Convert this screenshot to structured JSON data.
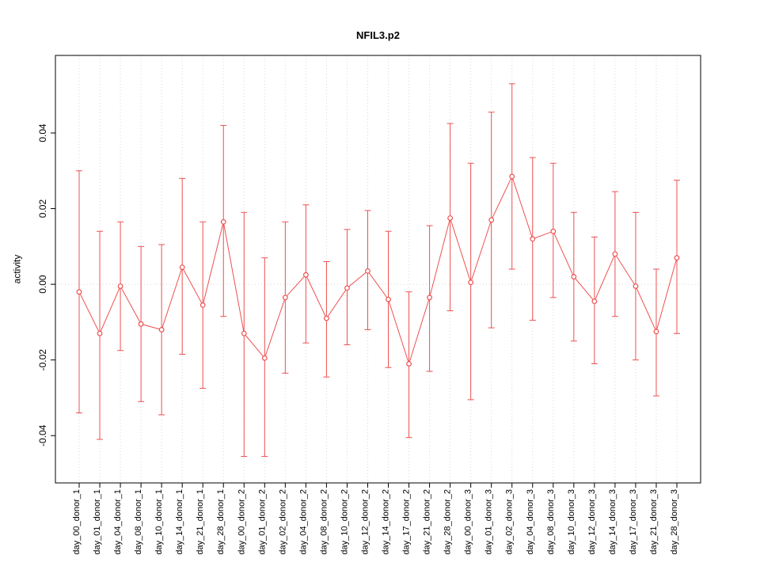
{
  "chart_data": {
    "type": "line",
    "title": "NFIL3.p2",
    "ylabel": "activity",
    "xlabel": "",
    "legend_position": "none",
    "grid": "vertical dotted line at each category; dotted horizontal line at y=0",
    "marker": "open-circle",
    "error_bars": "vertical with caps",
    "categories": [
      "day_00_donor_1",
      "day_01_donor_1",
      "day_04_donor_1",
      "day_08_donor_1",
      "day_10_donor_1",
      "day_14_donor_1",
      "day_21_donor_1",
      "day_28_donor_1",
      "day_00_donor_2",
      "day_01_donor_2",
      "day_02_donor_2",
      "day_04_donor_2",
      "day_08_donor_2",
      "day_10_donor_2",
      "day_12_donor_2",
      "day_14_donor_2",
      "day_17_donor_2",
      "day_21_donor_2",
      "day_28_donor_2",
      "day_00_donor_3",
      "day_01_donor_3",
      "day_02_donor_3",
      "day_04_donor_3",
      "day_08_donor_3",
      "day_10_donor_3",
      "day_12_donor_3",
      "day_14_donor_3",
      "day_17_donor_3",
      "day_21_donor_3",
      "day_28_donor_3"
    ],
    "series": [
      {
        "name": "NFIL3.p2 activity",
        "values": [
          -0.002,
          -0.013,
          -0.0005,
          -0.0105,
          -0.012,
          0.0045,
          -0.0055,
          0.0165,
          -0.013,
          -0.0195,
          -0.0035,
          0.0025,
          -0.009,
          -0.001,
          0.0035,
          -0.004,
          -0.021,
          -0.0035,
          0.0175,
          0.0005,
          0.017,
          0.0285,
          0.012,
          0.014,
          0.002,
          -0.0045,
          0.008,
          -0.0005,
          -0.0125,
          0.007
        ],
        "ci_lower": [
          -0.034,
          -0.041,
          -0.0175,
          -0.031,
          -0.0345,
          -0.0185,
          -0.0275,
          -0.0085,
          -0.0455,
          -0.0455,
          -0.0235,
          -0.0155,
          -0.0245,
          -0.016,
          -0.012,
          -0.022,
          -0.0405,
          -0.023,
          -0.007,
          -0.0305,
          -0.0115,
          0.004,
          -0.0095,
          -0.0035,
          -0.015,
          -0.021,
          -0.0085,
          -0.02,
          -0.0295,
          -0.013
        ],
        "ci_upper": [
          0.03,
          0.014,
          0.0165,
          0.01,
          0.0105,
          0.028,
          0.0165,
          0.042,
          0.019,
          0.007,
          0.0165,
          0.021,
          0.006,
          0.0145,
          0.0195,
          0.014,
          -0.002,
          0.0155,
          0.0425,
          0.032,
          0.0455,
          0.053,
          0.0335,
          0.032,
          0.019,
          0.0125,
          0.0245,
          0.019,
          0.004,
          0.0275
        ]
      }
    ],
    "ytick_values": [
      -0.04,
      -0.02,
      0,
      0.02,
      0.04
    ],
    "ytick_labels": [
      "-0.04",
      "-0.02",
      "0.00",
      "0.02",
      "0.04"
    ],
    "ylim": [
      -0.0525,
      0.0605
    ],
    "colors": {
      "series": "#ee5050",
      "grid": "#d8d8d8",
      "axis": "#000000",
      "background": "#ffffff"
    }
  }
}
